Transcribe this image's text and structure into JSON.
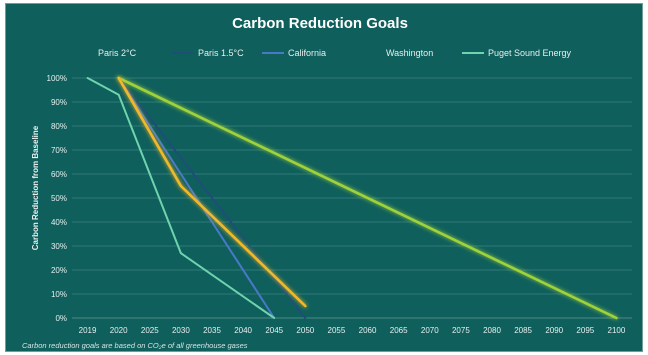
{
  "chart_data": {
    "type": "line",
    "title": "Carbon Reduction Goals",
    "ylabel": "Carbon Reduction from Baseline",
    "xlabel": "",
    "footnote": "Carbon reduction goals are based on CO₂e of all greenhouse gases",
    "x_ticks": [
      "2019",
      "2020",
      "2025",
      "2030",
      "2035",
      "2040",
      "2045",
      "2050",
      "2055",
      "2060",
      "2065",
      "2070",
      "2075",
      "2080",
      "2085",
      "2090",
      "2095",
      "2100"
    ],
    "y_ticks": [
      "0%",
      "10%",
      "20%",
      "30%",
      "40%",
      "50%",
      "60%",
      "70%",
      "80%",
      "90%",
      "100%"
    ],
    "ylim": [
      0,
      100
    ],
    "grid": true,
    "legend_position": "top",
    "series": [
      {
        "name": "Paris 2°C",
        "color": "#9fd23a",
        "glow": true,
        "points": [
          [
            "2020",
            100
          ],
          [
            "2100",
            0
          ]
        ]
      },
      {
        "name": "Paris 1.5°C",
        "color": "#1f4e79",
        "glow": false,
        "points": [
          [
            "2020",
            100
          ],
          [
            "2050",
            0
          ]
        ]
      },
      {
        "name": "California",
        "color": "#4a78c9",
        "glow": false,
        "points": [
          [
            "2020",
            100
          ],
          [
            "2045",
            0
          ]
        ]
      },
      {
        "name": "Washington",
        "color": "#f1b82b",
        "glow": true,
        "points": [
          [
            "2020",
            100
          ],
          [
            "2030",
            55
          ],
          [
            "2050",
            5
          ]
        ]
      },
      {
        "name": "Puget Sound Energy",
        "color": "#6fd3ad",
        "glow": false,
        "points": [
          [
            "2019",
            100
          ],
          [
            "2020",
            93
          ],
          [
            "2030",
            27
          ],
          [
            "2045",
            0
          ]
        ]
      }
    ]
  }
}
